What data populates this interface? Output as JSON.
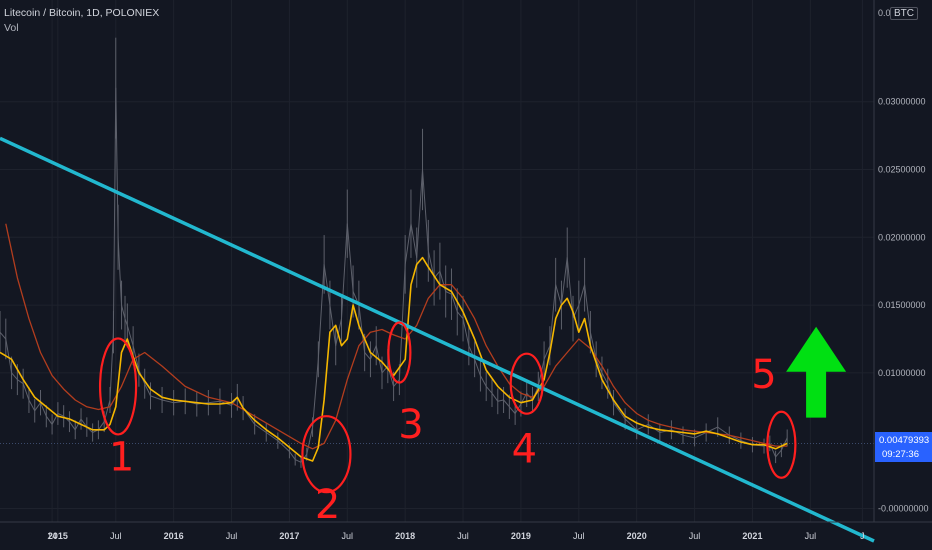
{
  "header": {
    "title": "Litecoin / Bitcoin, 1D, POLONIEX",
    "subtitle": "Vol",
    "currency_badge": "BTC"
  },
  "price_label": {
    "value": "0.00479393",
    "countdown": "09:27:36",
    "bg_color": "#2962ff"
  },
  "colors": {
    "background": "#131722",
    "price": "#5d606b",
    "ma_fast": "#f5b700",
    "ma_slow": "#b33d1e",
    "trendline": "#22b8cf",
    "annotation": "#ff1f1f",
    "arrow": "#00e012"
  },
  "chart_data": {
    "type": "line",
    "title": "Litecoin / Bitcoin, 1D, POLONIEX",
    "ylim": [
      -0.001,
      0.0375
    ],
    "y_ticks": [
      "0.03000000",
      "0.02500000",
      "0.02000000",
      "0.01500000",
      "0.01000000",
      "-0.00000000"
    ],
    "y_tick_values": [
      0.03,
      0.025,
      0.02,
      0.015,
      0.01,
      0.0
    ],
    "y_top_label": "0.0",
    "x_ticks": [
      {
        "label": "14",
        "t": 2014.95,
        "year": false
      },
      {
        "label": "2015",
        "t": 2015.0,
        "year": true
      },
      {
        "label": "Jul",
        "t": 2015.5,
        "year": false
      },
      {
        "label": "2016",
        "t": 2016.0,
        "year": true
      },
      {
        "label": "Jul",
        "t": 2016.5,
        "year": false
      },
      {
        "label": "2017",
        "t": 2017.0,
        "year": true
      },
      {
        "label": "Jul",
        "t": 2017.5,
        "year": false
      },
      {
        "label": "2018",
        "t": 2018.0,
        "year": true
      },
      {
        "label": "Jul",
        "t": 2018.5,
        "year": false
      },
      {
        "label": "2019",
        "t": 2019.0,
        "year": true
      },
      {
        "label": "Jul",
        "t": 2019.5,
        "year": false
      },
      {
        "label": "2020",
        "t": 2020.0,
        "year": true
      },
      {
        "label": "Jul",
        "t": 2020.5,
        "year": false
      },
      {
        "label": "2021",
        "t": 2021.0,
        "year": true
      },
      {
        "label": "Jul",
        "t": 2021.5,
        "year": false
      },
      {
        "label": "J",
        "t": 2021.95,
        "year": false
      }
    ],
    "xlim": [
      2014.5,
      2022.05
    ],
    "series": [
      {
        "role": "price",
        "x": [
          2014.5,
          2014.55,
          2014.6,
          2014.65,
          2014.7,
          2014.75,
          2014.8,
          2014.85,
          2014.9,
          2014.95,
          2015.0,
          2015.05,
          2015.1,
          2015.15,
          2015.2,
          2015.25,
          2015.3,
          2015.35,
          2015.4,
          2015.45,
          2015.48,
          2015.5,
          2015.52,
          2015.55,
          2015.58,
          2015.6,
          2015.65,
          2015.7,
          2015.75,
          2015.8,
          2015.9,
          2016.0,
          2016.1,
          2016.2,
          2016.3,
          2016.4,
          2016.5,
          2016.55,
          2016.6,
          2016.7,
          2016.8,
          2016.9,
          2017.0,
          2017.05,
          2017.1,
          2017.15,
          2017.2,
          2017.25,
          2017.3,
          2017.35,
          2017.4,
          2017.45,
          2017.5,
          2017.55,
          2017.6,
          2017.65,
          2017.7,
          2017.75,
          2017.8,
          2017.85,
          2017.9,
          2017.95,
          2018.0,
          2018.05,
          2018.1,
          2018.15,
          2018.2,
          2018.25,
          2018.3,
          2018.35,
          2018.4,
          2018.45,
          2018.5,
          2018.55,
          2018.6,
          2018.65,
          2018.7,
          2018.75,
          2018.8,
          2018.85,
          2018.9,
          2018.95,
          2019.0,
          2019.05,
          2019.1,
          2019.15,
          2019.2,
          2019.25,
          2019.3,
          2019.35,
          2019.4,
          2019.45,
          2019.5,
          2019.55,
          2019.6,
          2019.65,
          2019.7,
          2019.75,
          2019.8,
          2019.9,
          2020.0,
          2020.1,
          2020.2,
          2020.3,
          2020.4,
          2020.5,
          2020.6,
          2020.7,
          2020.8,
          2020.9,
          2021.0,
          2021.1,
          2021.15,
          2021.2,
          2021.25,
          2021.3
        ],
        "values": [
          0.013,
          0.0125,
          0.01,
          0.0095,
          0.0092,
          0.008,
          0.0072,
          0.0078,
          0.0068,
          0.0062,
          0.007,
          0.0068,
          0.0064,
          0.0058,
          0.0066,
          0.006,
          0.0056,
          0.0058,
          0.0064,
          0.008,
          0.013,
          0.031,
          0.02,
          0.015,
          0.014,
          0.0135,
          0.012,
          0.0102,
          0.0092,
          0.0083,
          0.008,
          0.0078,
          0.0079,
          0.0077,
          0.0078,
          0.0079,
          0.0076,
          0.0082,
          0.0074,
          0.0062,
          0.0056,
          0.005,
          0.0042,
          0.0036,
          0.0034,
          0.004,
          0.006,
          0.011,
          0.018,
          0.015,
          0.012,
          0.014,
          0.021,
          0.016,
          0.015,
          0.0115,
          0.011,
          0.012,
          0.01,
          0.0105,
          0.009,
          0.0095,
          0.018,
          0.021,
          0.0185,
          0.025,
          0.019,
          0.017,
          0.0175,
          0.016,
          0.0158,
          0.0145,
          0.014,
          0.012,
          0.011,
          0.0098,
          0.009,
          0.0085,
          0.0079,
          0.008,
          0.0075,
          0.007,
          0.0077,
          0.0085,
          0.008,
          0.009,
          0.011,
          0.012,
          0.0165,
          0.015,
          0.0185,
          0.014,
          0.015,
          0.0165,
          0.013,
          0.011,
          0.01,
          0.0092,
          0.0078,
          0.0066,
          0.0058,
          0.0062,
          0.0056,
          0.0058,
          0.0054,
          0.0052,
          0.0056,
          0.006,
          0.0054,
          0.005,
          0.0047,
          0.0046,
          0.0048,
          0.0038,
          0.0043,
          0.0052
        ]
      },
      {
        "role": "ma_fast",
        "x": [
          2014.5,
          2014.6,
          2014.7,
          2014.8,
          2014.9,
          2015.0,
          2015.1,
          2015.2,
          2015.3,
          2015.4,
          2015.45,
          2015.5,
          2015.55,
          2015.6,
          2015.65,
          2015.7,
          2015.8,
          2015.9,
          2016.0,
          2016.1,
          2016.2,
          2016.3,
          2016.4,
          2016.5,
          2016.55,
          2016.6,
          2016.7,
          2016.8,
          2016.9,
          2017.0,
          2017.1,
          2017.2,
          2017.25,
          2017.3,
          2017.35,
          2017.4,
          2017.45,
          2017.5,
          2017.55,
          2017.6,
          2017.7,
          2017.8,
          2017.9,
          2018.0,
          2018.05,
          2018.1,
          2018.15,
          2018.2,
          2018.3,
          2018.4,
          2018.5,
          2018.6,
          2018.7,
          2018.8,
          2018.9,
          2019.0,
          2019.1,
          2019.2,
          2019.25,
          2019.3,
          2019.35,
          2019.4,
          2019.45,
          2019.5,
          2019.55,
          2019.6,
          2019.7,
          2019.8,
          2019.9,
          2020.0,
          2020.1,
          2020.2,
          2020.3,
          2020.4,
          2020.5,
          2020.6,
          2020.7,
          2020.8,
          2020.9,
          2021.0,
          2021.1,
          2021.2,
          2021.3
        ],
        "values": [
          0.0115,
          0.011,
          0.0095,
          0.0082,
          0.0075,
          0.0068,
          0.0066,
          0.0062,
          0.0058,
          0.0058,
          0.0062,
          0.0075,
          0.0115,
          0.0125,
          0.0112,
          0.01,
          0.0088,
          0.0082,
          0.008,
          0.0079,
          0.0078,
          0.0077,
          0.0077,
          0.0078,
          0.0082,
          0.0074,
          0.0065,
          0.0058,
          0.0052,
          0.0045,
          0.0038,
          0.0035,
          0.0045,
          0.008,
          0.013,
          0.0135,
          0.012,
          0.0125,
          0.015,
          0.0135,
          0.0115,
          0.0108,
          0.0098,
          0.011,
          0.0165,
          0.018,
          0.0185,
          0.0178,
          0.0165,
          0.016,
          0.0145,
          0.0125,
          0.0102,
          0.009,
          0.0082,
          0.0078,
          0.008,
          0.0095,
          0.0115,
          0.014,
          0.015,
          0.0155,
          0.0145,
          0.013,
          0.014,
          0.012,
          0.0095,
          0.008,
          0.0068,
          0.0063,
          0.006,
          0.0058,
          0.0057,
          0.0056,
          0.0055,
          0.0057,
          0.0055,
          0.0052,
          0.0049,
          0.0047,
          0.0047,
          0.0044,
          0.0048
        ]
      },
      {
        "role": "ma_slow",
        "x": [
          2014.55,
          2014.65,
          2014.75,
          2014.85,
          2014.95,
          2015.05,
          2015.15,
          2015.25,
          2015.35,
          2015.45,
          2015.55,
          2015.65,
          2015.75,
          2015.9,
          2016.1,
          2016.3,
          2016.5,
          2016.7,
          2016.9,
          2017.1,
          2017.2,
          2017.3,
          2017.4,
          2017.5,
          2017.6,
          2017.7,
          2017.8,
          2017.9,
          2018.0,
          2018.1,
          2018.2,
          2018.3,
          2018.4,
          2018.5,
          2018.6,
          2018.7,
          2018.8,
          2018.9,
          2019.0,
          2019.1,
          2019.2,
          2019.3,
          2019.4,
          2019.5,
          2019.6,
          2019.7,
          2019.8,
          2019.9,
          2020.0,
          2020.1,
          2020.2,
          2020.3,
          2020.4,
          2020.5,
          2020.6,
          2020.7,
          2020.8,
          2020.9,
          2021.0,
          2021.1,
          2021.2,
          2021.3
        ],
        "values": [
          0.021,
          0.017,
          0.014,
          0.0115,
          0.0098,
          0.0088,
          0.008,
          0.0075,
          0.0073,
          0.0075,
          0.009,
          0.011,
          0.0115,
          0.0105,
          0.009,
          0.0082,
          0.0078,
          0.0068,
          0.0058,
          0.0048,
          0.0044,
          0.0048,
          0.0065,
          0.0095,
          0.012,
          0.013,
          0.0132,
          0.0128,
          0.0125,
          0.0135,
          0.0155,
          0.0165,
          0.0165,
          0.0155,
          0.014,
          0.012,
          0.0105,
          0.0092,
          0.0085,
          0.0082,
          0.009,
          0.0105,
          0.0115,
          0.0125,
          0.0118,
          0.0105,
          0.009,
          0.0078,
          0.007,
          0.0065,
          0.0062,
          0.006,
          0.0058,
          0.0057,
          0.0056,
          0.0055,
          0.0054,
          0.0052,
          0.005,
          0.0048,
          0.0046,
          0.0046
        ]
      },
      {
        "role": "trendline",
        "x": [
          2014.5,
          2022.05
        ],
        "values": [
          0.0273,
          -0.0024
        ]
      }
    ],
    "annotations": [
      {
        "label": "1",
        "t": 2015.52,
        "v": 0.009,
        "rx": 18,
        "ry": 48,
        "num_t": 2015.55,
        "num_v": 0.0028
      },
      {
        "label": "2",
        "t": 2017.32,
        "v": 0.004,
        "rx": 24,
        "ry": 38,
        "num_t": 2017.33,
        "num_v": -0.0007
      },
      {
        "label": "3",
        "t": 2017.95,
        "v": 0.0115,
        "rx": 11,
        "ry": 30,
        "num_t": 2018.05,
        "num_v": 0.0052
      },
      {
        "label": "4",
        "t": 2019.05,
        "v": 0.0092,
        "rx": 16,
        "ry": 30,
        "num_t": 2019.03,
        "num_v": 0.0034
      },
      {
        "label": "5",
        "t": 2021.25,
        "v": 0.0047,
        "rx": 14,
        "ry": 33,
        "num_t": 2021.1,
        "num_v": 0.0089
      }
    ],
    "arrow": {
      "t": 2021.55,
      "v_base": 0.0067,
      "v_tip": 0.0134
    }
  }
}
